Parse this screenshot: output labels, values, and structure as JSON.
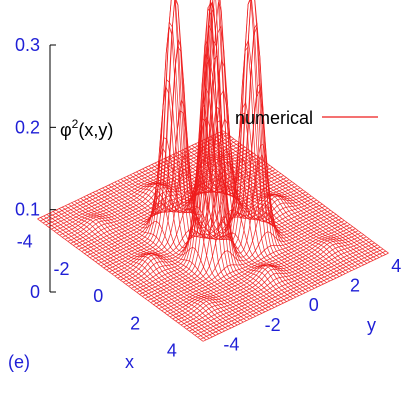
{
  "chart_data": {
    "type": "surface",
    "panel_label": "(e)",
    "xlabel": "x",
    "ylabel": "y",
    "zlabel_base": "φ",
    "zlabel_sup": "2",
    "zlabel_rest": "(x,y)",
    "legend": {
      "label": "numerical",
      "placement": "top-right"
    },
    "xlim": [
      -4.5,
      4.5
    ],
    "ylim": [
      -4.5,
      4.5
    ],
    "zlim": [
      0,
      0.3
    ],
    "x_ticks": [
      "-4",
      "-2",
      "0",
      "2",
      "4"
    ],
    "x_tick_values": [
      -4,
      -2,
      0,
      2,
      4
    ],
    "y_ticks": [
      "-4",
      "-2",
      "0",
      "2",
      "4"
    ],
    "y_tick_values": [
      -4,
      -2,
      0,
      2,
      4
    ],
    "z_ticks": [
      "0",
      "0.1",
      "0.2",
      "0.3"
    ],
    "z_tick_values": [
      0,
      0.1,
      0.2,
      0.3
    ],
    "series": [
      {
        "name": "numerical",
        "peaks": [
          {
            "x": -1.0,
            "y": -1.0,
            "z": 0.3
          },
          {
            "x": 1.0,
            "y": -1.0,
            "z": 0.32
          },
          {
            "x": -1.0,
            "y": 1.0,
            "z": 0.3
          },
          {
            "x": 1.0,
            "y": 1.0,
            "z": 0.31
          },
          {
            "x": -3.0,
            "y": 0.0,
            "z": 0.012
          },
          {
            "x": 3.0,
            "y": 0.0,
            "z": 0.012
          },
          {
            "x": 0.0,
            "y": -3.0,
            "z": 0.012
          },
          {
            "x": 0.0,
            "y": 3.0,
            "z": 0.012
          },
          {
            "x": -3.0,
            "y": -3.0,
            "z": 0.006
          },
          {
            "x": 3.0,
            "y": -3.0,
            "z": 0.006
          },
          {
            "x": -3.0,
            "y": 3.0,
            "z": 0.006
          },
          {
            "x": 3.0,
            "y": 3.0,
            "z": 0.006
          }
        ],
        "peak_width": 0.35
      }
    ],
    "colors": {
      "surface": "#ee1c1c",
      "labels": "#1f1fd6",
      "axes": "#000000"
    }
  }
}
